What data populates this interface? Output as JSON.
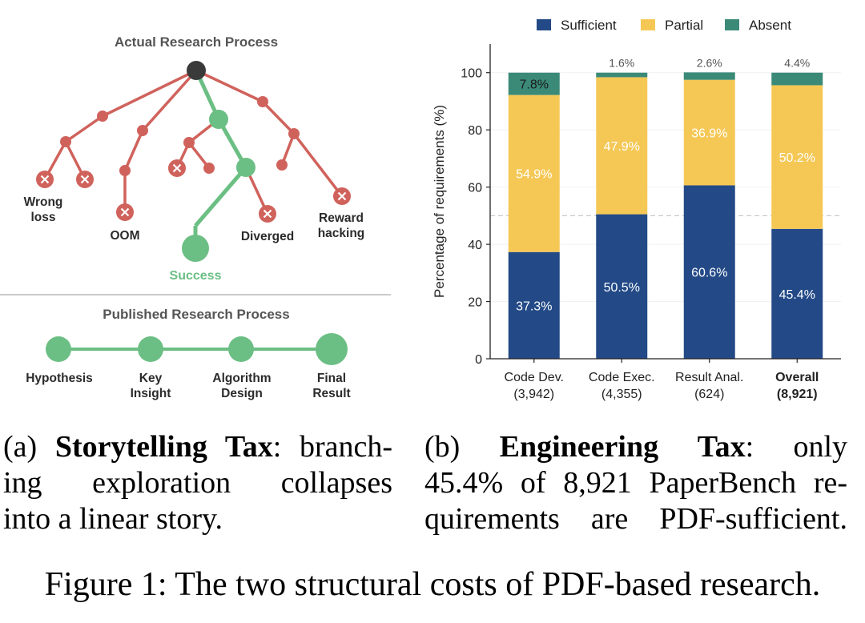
{
  "panel_a": {
    "actual_title": "Actual Research Process",
    "published_title": "Published Research Process",
    "failure_labels": {
      "wrong_loss": [
        "Wrong",
        "loss"
      ],
      "oom": "OOM",
      "diverged": "Diverged",
      "reward_hacking": [
        "Reward",
        "hacking"
      ]
    },
    "success_label": "Success",
    "linear_steps": [
      {
        "lines": [
          "Hypothesis"
        ]
      },
      {
        "lines": [
          "Key",
          "Insight"
        ]
      },
      {
        "lines": [
          "Algorithm",
          "Design"
        ]
      },
      {
        "lines": [
          "Final",
          "Result"
        ]
      }
    ],
    "colors": {
      "failure": "#d0625c",
      "success": "#6cbf84",
      "root": "#3a3a3a",
      "title": "#555555"
    },
    "icons": {
      "failure_marker": "x-circle-icon"
    }
  },
  "chart_data": {
    "type": "bar",
    "stacked": true,
    "ylabel": "Percentage of requirements (%)",
    "ylim": [
      0,
      110
    ],
    "yticks": [
      0,
      20,
      40,
      60,
      80,
      100
    ],
    "reference_line": 50,
    "legend_position": "top",
    "categories": [
      {
        "name": "Code Dev.",
        "count": "(3,942)",
        "bold": false
      },
      {
        "name": "Code Exec.",
        "count": "(4,355)",
        "bold": false
      },
      {
        "name": "Result Anal.",
        "count": "(624)",
        "bold": false
      },
      {
        "name": "Overall",
        "count": "(8,921)",
        "bold": true
      }
    ],
    "series": [
      {
        "name": "Sufficient",
        "color": "#234a87",
        "values": [
          37.3,
          50.5,
          60.6,
          45.4
        ],
        "labels": [
          "37.3%",
          "50.5%",
          "60.6%",
          "45.4%"
        ]
      },
      {
        "name": "Partial",
        "color": "#f5c856",
        "values": [
          54.9,
          47.9,
          36.9,
          50.2
        ],
        "labels": [
          "54.9%",
          "47.9%",
          "36.9%",
          "50.2%"
        ]
      },
      {
        "name": "Absent",
        "color": "#3b8a78",
        "values": [
          7.8,
          1.6,
          2.6,
          4.4
        ],
        "labels": [
          "7.8%",
          "1.6%",
          "2.6%",
          "4.4%"
        ]
      }
    ]
  },
  "captions": {
    "a": {
      "prefix": "(a) ",
      "bold": "Storytelling Tax",
      "rest": ": branch-",
      "line2": "ing exploration collapses",
      "line3": "into a linear story."
    },
    "b": {
      "prefix": "(b) ",
      "bold": "Engineering Tax",
      "rest": ": only",
      "line2": "45.4% of 8,921 PaperBench re-",
      "line3": "quirements are PDF-sufficient."
    },
    "figure": "Figure 1: The two structural costs of PDF-based research."
  }
}
